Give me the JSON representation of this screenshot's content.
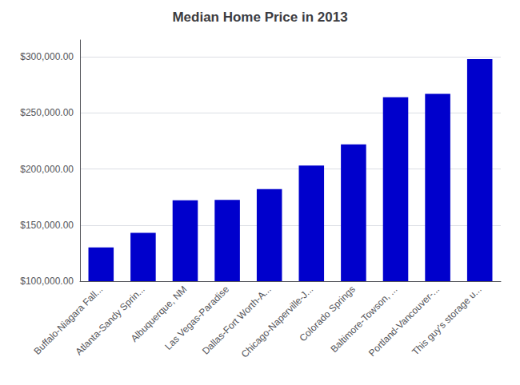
{
  "chart_data": {
    "type": "bar",
    "title": "Median Home Price in 2013",
    "categories": [
      "Buffalo-Niagara Fall...",
      "Atlanta-Sandy Sprin...",
      "Albuquerque, NM",
      "Las Vegas-Paradise",
      "Dallas-Fort Worth-A...",
      "Chicago-Naperville-J...",
      "Colorado Springs",
      "Baltimore-Towson, ...",
      "Portland-Vancouver-...",
      "This guy's storage u..."
    ],
    "values": [
      130000,
      143000,
      172000,
      172500,
      182000,
      203000,
      222000,
      264000,
      267000,
      298000
    ],
    "color": "#0000cc",
    "ylim": [
      100000,
      315000
    ],
    "yticks": [
      {
        "value": 100000,
        "label": "$100,000.00"
      },
      {
        "value": 150000,
        "label": "$150,000.00"
      },
      {
        "value": 200000,
        "label": "$200,000.00"
      },
      {
        "value": 250000,
        "label": "$250,000.00"
      },
      {
        "value": 300000,
        "label": "$300,000.00"
      }
    ],
    "grid": true
  }
}
